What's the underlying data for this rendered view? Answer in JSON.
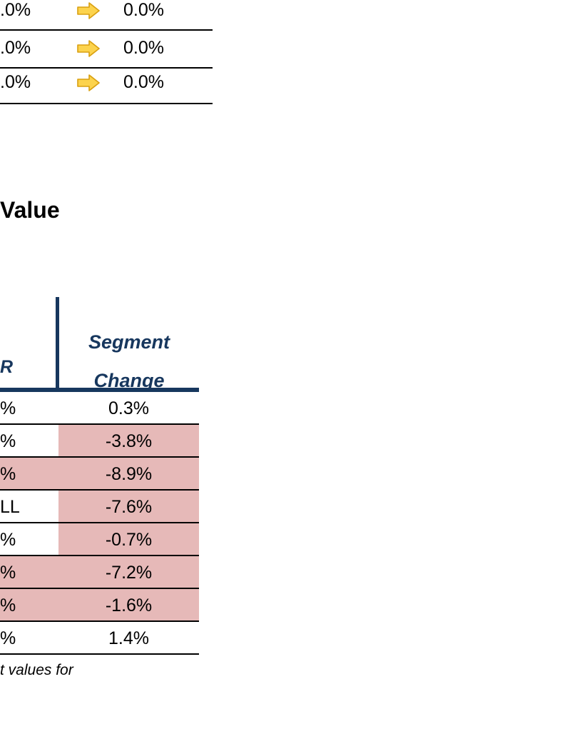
{
  "top_table": {
    "rows": [
      {
        "left_value": ".0%",
        "right_value": "0.0%",
        "icon": "right-arrow-icon"
      },
      {
        "left_value": ".0%",
        "right_value": "0.0%",
        "icon": "right-arrow-icon"
      },
      {
        "left_value": ".0%",
        "right_value": "0.0%",
        "icon": "right-arrow-icon"
      }
    ]
  },
  "section": {
    "title": "Value"
  },
  "bottom_table": {
    "header_partial": "R",
    "header_segment_line1": "Segment",
    "header_segment_line2": "Change",
    "highlight_color": "#e6b9b8",
    "rows": [
      {
        "left": "%",
        "value": "0.3%",
        "left_highlight": false,
        "value_highlight": false
      },
      {
        "left": "%",
        "value": "-3.8%",
        "left_highlight": false,
        "value_highlight": true
      },
      {
        "left": "%",
        "value": "-8.9%",
        "left_highlight": true,
        "value_highlight": true
      },
      {
        "left": "LL",
        "value": "-7.6%",
        "left_highlight": false,
        "value_highlight": true
      },
      {
        "left": "%",
        "value": "-0.7%",
        "left_highlight": false,
        "value_highlight": true
      },
      {
        "left": "%",
        "value": "-7.2%",
        "left_highlight": true,
        "value_highlight": true
      },
      {
        "left": "%",
        "value": "-1.6%",
        "left_highlight": true,
        "value_highlight": true
      },
      {
        "left": "%",
        "value": "1.4%",
        "left_highlight": false,
        "value_highlight": false
      }
    ]
  },
  "footnote": "t values for"
}
